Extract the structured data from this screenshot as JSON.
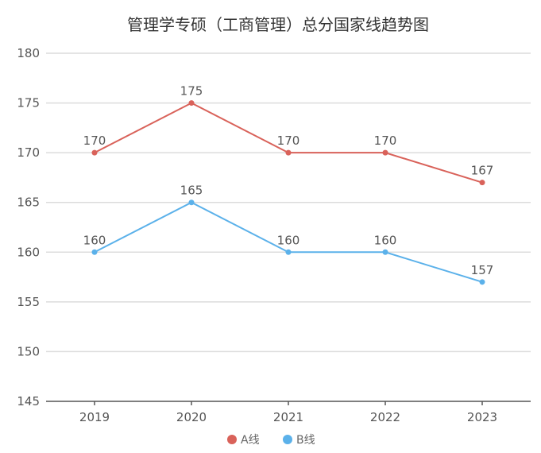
{
  "chart_data": {
    "type": "line",
    "title": "管理学专硕（工商管理）总分国家线趋势图",
    "categories": [
      "2019",
      "2020",
      "2021",
      "2022",
      "2023"
    ],
    "series": [
      {
        "name": "A线",
        "values": [
          170,
          175,
          170,
          170,
          167
        ],
        "color": "#d9625a"
      },
      {
        "name": "B线",
        "values": [
          160,
          165,
          160,
          160,
          157
        ],
        "color": "#5bb1ea"
      }
    ],
    "xlabel": "",
    "ylabel": "",
    "ylim": [
      145,
      180
    ],
    "yticks": [
      "145",
      "150",
      "155",
      "160",
      "165",
      "170",
      "175",
      "180"
    ],
    "grid": true,
    "legend": "bottom-center"
  }
}
